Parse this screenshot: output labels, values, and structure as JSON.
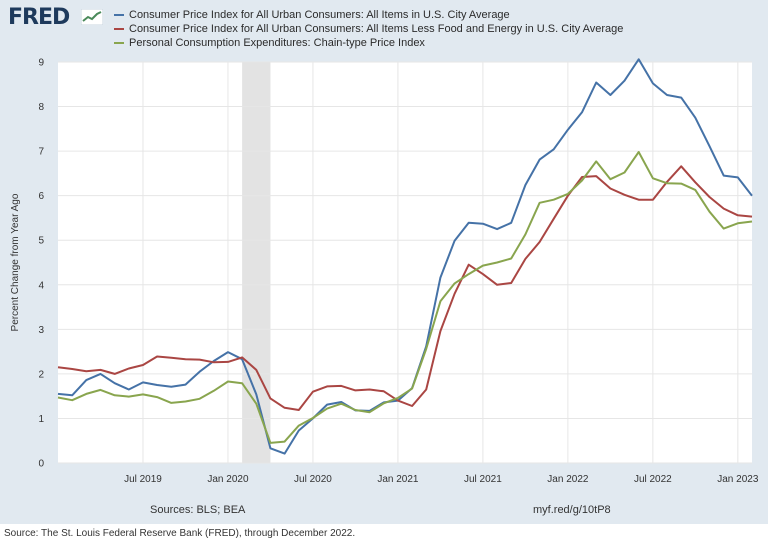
{
  "logo": {
    "text": "FRED",
    "icon": "fred-trend-icon"
  },
  "chart_data": {
    "type": "line",
    "title": "",
    "xlabel": "",
    "ylabel": "Percent Change from Year Ago",
    "ylim": [
      0,
      9
    ],
    "yticks": [
      0,
      1,
      2,
      3,
      4,
      5,
      6,
      7,
      8,
      9
    ],
    "xticks": [
      {
        "label": "Jul 2019",
        "date": "2019-07-01"
      },
      {
        "label": "Jan 2020",
        "date": "2020-01-01"
      },
      {
        "label": "Jul 2020",
        "date": "2020-07-01"
      },
      {
        "label": "Jan 2021",
        "date": "2021-01-01"
      },
      {
        "label": "Jul 2021",
        "date": "2021-07-01"
      },
      {
        "label": "Jan 2022",
        "date": "2022-01-01"
      },
      {
        "label": "Jul 2022",
        "date": "2022-07-01"
      },
      {
        "label": "Jan 2023",
        "date": "2023-01-01"
      }
    ],
    "x_start": "2019-01",
    "x_end": "2023-02",
    "recession": {
      "start": "2020-02",
      "end": "2020-04",
      "color": "#e3e3e3"
    },
    "grid": true,
    "legend": "top",
    "x": [
      "2019-01",
      "2019-02",
      "2019-03",
      "2019-04",
      "2019-05",
      "2019-06",
      "2019-07",
      "2019-08",
      "2019-09",
      "2019-10",
      "2019-11",
      "2019-12",
      "2020-01",
      "2020-02",
      "2020-03",
      "2020-04",
      "2020-05",
      "2020-06",
      "2020-07",
      "2020-08",
      "2020-09",
      "2020-10",
      "2020-11",
      "2020-12",
      "2021-01",
      "2021-02",
      "2021-03",
      "2021-04",
      "2021-05",
      "2021-06",
      "2021-07",
      "2021-08",
      "2021-09",
      "2021-10",
      "2021-11",
      "2021-12",
      "2022-01",
      "2022-02",
      "2022-03",
      "2022-04",
      "2022-05",
      "2022-06",
      "2022-07",
      "2022-08",
      "2022-09",
      "2022-10",
      "2022-11",
      "2022-12",
      "2023-01",
      "2023-02"
    ],
    "series": [
      {
        "name": "Consumer Price Index for All Urban Consumers: All Items in U.S. City Average",
        "color": "#4572a7",
        "values": [
          1.55,
          1.52,
          1.86,
          2.0,
          1.79,
          1.65,
          1.81,
          1.75,
          1.71,
          1.76,
          2.05,
          2.29,
          2.49,
          2.33,
          1.54,
          0.33,
          0.21,
          0.73,
          1.0,
          1.31,
          1.37,
          1.18,
          1.17,
          1.36,
          1.4,
          1.68,
          2.62,
          4.16,
          4.99,
          5.39,
          5.37,
          5.25,
          5.39,
          6.24,
          6.81,
          7.04,
          7.48,
          7.87,
          8.54,
          8.26,
          8.58,
          9.06,
          8.52,
          8.26,
          8.2,
          7.75,
          7.11,
          6.45,
          6.41,
          6.0
        ]
      },
      {
        "name": "Consumer Price Index for All Urban Consumers: All Items Less Food and Energy in U.S. City Average",
        "color": "#aa4643",
        "values": [
          2.15,
          2.11,
          2.06,
          2.09,
          2.0,
          2.12,
          2.2,
          2.39,
          2.36,
          2.33,
          2.32,
          2.26,
          2.27,
          2.37,
          2.09,
          1.45,
          1.24,
          1.19,
          1.6,
          1.72,
          1.73,
          1.63,
          1.65,
          1.61,
          1.4,
          1.28,
          1.65,
          2.96,
          3.8,
          4.45,
          4.24,
          4.0,
          4.04,
          4.58,
          4.96,
          5.48,
          6.0,
          6.42,
          6.44,
          6.16,
          6.02,
          5.91,
          5.91,
          6.31,
          6.66,
          6.3,
          5.97,
          5.71,
          5.56,
          5.53
        ]
      },
      {
        "name": "Personal Consumption Expenditures: Chain-type Price Index",
        "color": "#89a54e",
        "values": [
          1.47,
          1.41,
          1.55,
          1.64,
          1.52,
          1.49,
          1.54,
          1.48,
          1.35,
          1.38,
          1.44,
          1.62,
          1.83,
          1.79,
          1.33,
          0.45,
          0.48,
          0.84,
          1.01,
          1.22,
          1.33,
          1.19,
          1.14,
          1.34,
          1.46,
          1.67,
          2.56,
          3.63,
          4.03,
          4.24,
          4.43,
          4.5,
          4.59,
          5.13,
          5.84,
          5.91,
          6.04,
          6.34,
          6.77,
          6.37,
          6.52,
          6.98,
          6.39,
          6.28,
          6.27,
          6.13,
          5.64,
          5.26,
          5.38,
          5.42
        ]
      }
    ]
  },
  "footer": {
    "sources": "Sources: BLS; BEA",
    "link": "myf.red/g/10tP8"
  },
  "caption": "Source: The St. Louis Federal Reserve Bank (FRED), through December 2022."
}
